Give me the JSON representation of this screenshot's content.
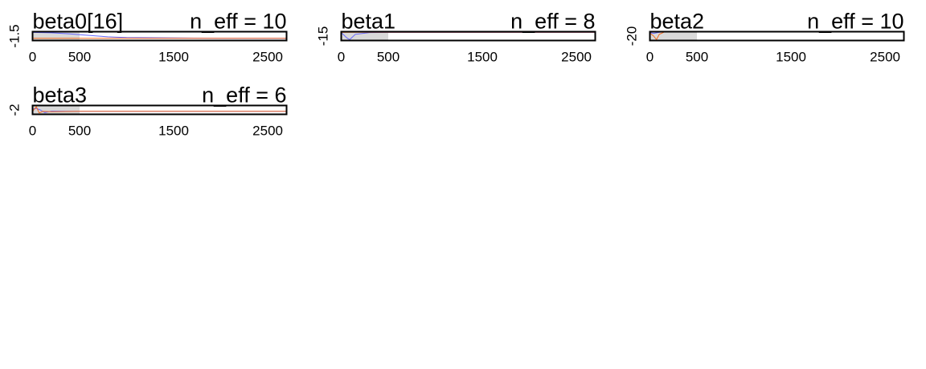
{
  "chart_data": [
    {
      "type": "line",
      "title": "beta0[16]",
      "annotation": "n_eff = 10",
      "xlim": [
        0,
        2700
      ],
      "ylim": [
        -2.2,
        -1.0
      ],
      "x_ticks": [
        "0",
        "500",
        "1500",
        "2500"
      ],
      "x_tick_values": [
        0,
        500,
        1500,
        2500
      ],
      "y_tick_labels": [
        "-1.5"
      ],
      "y_tick_values": [
        -1.5
      ],
      "warmup_end": 500,
      "series": [
        {
          "color": "#6666ff",
          "x": [
            0,
            200,
            400,
            500,
            600,
            700,
            800,
            900,
            1000,
            1500,
            2000,
            2500,
            2700
          ],
          "y": [
            -1.1,
            -1.15,
            -1.3,
            -1.4,
            -1.5,
            -1.6,
            -1.7,
            -1.75,
            -1.8,
            -1.85,
            -1.9,
            -1.9,
            -1.9
          ]
        },
        {
          "color": "#f26b21",
          "x": [
            0,
            500,
            1000,
            1500,
            2000,
            2500,
            2700
          ],
          "y": [
            -1.9,
            -1.9,
            -1.9,
            -1.9,
            -1.9,
            -1.9,
            -1.9
          ]
        }
      ]
    },
    {
      "type": "line",
      "title": "beta1",
      "annotation": "n_eff = 8",
      "xlim": [
        0,
        2700
      ],
      "ylim": [
        -20,
        -10
      ],
      "x_ticks": [
        "0",
        "500",
        "1500",
        "2500"
      ],
      "x_tick_values": [
        0,
        500,
        1500,
        2500
      ],
      "y_tick_labels": [
        "-15"
      ],
      "y_tick_values": [
        -15
      ],
      "warmup_end": 500,
      "series": [
        {
          "color": "#6666ff",
          "x": [
            0,
            30,
            60,
            90,
            150,
            300,
            500,
            1000,
            1500,
            2000,
            2500,
            2700
          ],
          "y": [
            -11,
            -14,
            -17,
            -19,
            -13,
            -11,
            -10.8,
            -10.8,
            -10.8,
            -10.8,
            -10.8,
            -10.8
          ]
        },
        {
          "color": "#f26b21",
          "x": [
            0,
            100,
            300,
            500,
            1000,
            1500,
            2000,
            2500,
            2700
          ],
          "y": [
            -10.8,
            -10.7,
            -10.6,
            -10.6,
            -10.6,
            -10.6,
            -10.6,
            -10.6,
            -10.6
          ]
        }
      ]
    },
    {
      "type": "line",
      "title": "beta2",
      "annotation": "n_eff = 10",
      "xlim": [
        0,
        2700
      ],
      "ylim": [
        -30,
        -10
      ],
      "x_ticks": [
        "0",
        "500",
        "1500",
        "2500"
      ],
      "x_tick_values": [
        0,
        500,
        1500,
        2500
      ],
      "y_tick_labels": [
        "-20"
      ],
      "y_tick_values": [
        -20
      ],
      "warmup_end": 500,
      "series": [
        {
          "color": "#6666ff",
          "x": [
            0,
            40,
            80,
            120,
            500,
            1000,
            1500,
            2000,
            2500,
            2700
          ],
          "y": [
            -12,
            -14,
            -12,
            -11,
            -11,
            -11,
            -11,
            -11,
            -11,
            -11
          ]
        },
        {
          "color": "#f26b21",
          "x": [
            0,
            40,
            70,
            100,
            150,
            500,
            1000,
            1500,
            2000,
            2500,
            2700
          ],
          "y": [
            -13,
            -20,
            -28,
            -16,
            -11,
            -10.8,
            -10.8,
            -10.8,
            -10.8,
            -10.8,
            -10.8
          ]
        }
      ]
    },
    {
      "type": "line",
      "title": "beta3",
      "annotation": "n_eff = 6",
      "xlim": [
        0,
        2700
      ],
      "ylim": [
        -3.0,
        0.0
      ],
      "x_ticks": [
        "0",
        "500",
        "1500",
        "2500"
      ],
      "x_tick_values": [
        0,
        500,
        1500,
        2500
      ],
      "y_tick_labels": [
        "-2"
      ],
      "y_tick_values": [
        -2
      ],
      "warmup_end": 500,
      "series": [
        {
          "color": "#6666ff",
          "x": [
            0,
            40,
            80,
            130,
            200,
            500,
            1000,
            1500,
            2000,
            2500,
            2700
          ],
          "y": [
            -1.2,
            -1.0,
            -1.5,
            -2.4,
            -1.9,
            -2.0,
            -2.0,
            -2.0,
            -2.0,
            -2.0,
            -2.0
          ]
        },
        {
          "color": "#f26b21",
          "x": [
            0,
            40,
            70,
            110,
            200,
            500,
            1000,
            1500,
            2000,
            2500,
            2700
          ],
          "y": [
            -2.0,
            -0.4,
            -2.5,
            -2.0,
            -2.1,
            -2.0,
            -2.0,
            -2.0,
            -2.0,
            -2.0,
            -2.0
          ]
        }
      ]
    }
  ]
}
